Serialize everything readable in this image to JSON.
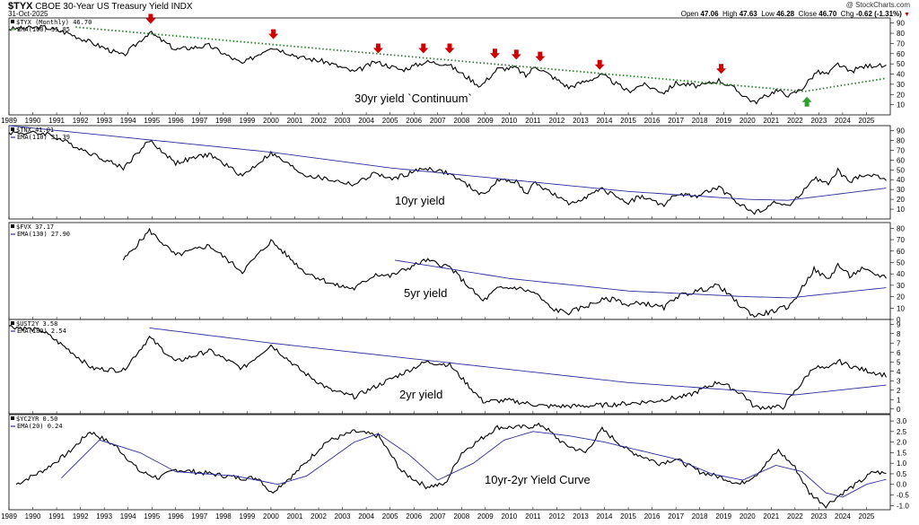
{
  "header": {
    "symbol": "$TYX",
    "name": "CBOE 30-Year US Treasury Yield INDX",
    "date": "31-Oct-2025",
    "source": "@ StockCharts.com",
    "open_label": "Open",
    "open": "47.06",
    "high_label": "High",
    "high": "47.63",
    "low_label": "Low",
    "low": "46.28",
    "close_label": "Close",
    "close": "46.70",
    "chg_label": "Chg",
    "chg": "-0.62 (-1.31%)"
  },
  "colors": {
    "price": "#000000",
    "ema": "#2e2e9a",
    "dotted": "#2e7d32",
    "down_arrow": "#d00000",
    "up_arrow": "#2ea02e"
  },
  "x_years": [
    1989,
    1990,
    1991,
    1992,
    1993,
    1994,
    1995,
    1996,
    1997,
    1998,
    1999,
    2000,
    2001,
    2002,
    2003,
    2004,
    2005,
    2006,
    2007,
    2008,
    2009,
    2010,
    2011,
    2012,
    2013,
    2014,
    2015,
    2016,
    2017,
    2018,
    2019,
    2020,
    2021,
    2022,
    2023,
    2024,
    2025
  ],
  "chart_data": [
    {
      "type": "line",
      "symbol": "$TYX",
      "legend_price": "$TYX (Monthly) 46.70",
      "legend_ema": "EMA(100) 35.85",
      "annotation": "30yr yield `Continuum`",
      "ylim": [
        0,
        95
      ],
      "yticks": [
        10,
        20,
        30,
        40,
        50,
        60,
        70,
        80,
        90
      ],
      "key_points": [
        [
          1989.0,
          84
        ],
        [
          1990.5,
          86
        ],
        [
          1991.5,
          80
        ],
        [
          1993.8,
          58
        ],
        [
          1994.9,
          81
        ],
        [
          1996.0,
          64
        ],
        [
          1997.4,
          68
        ],
        [
          1998.8,
          50
        ],
        [
          2000.0,
          67
        ],
        [
          2001.3,
          56
        ],
        [
          2002.3,
          52
        ],
        [
          2003.5,
          42
        ],
        [
          2004.4,
          52
        ],
        [
          2005.5,
          44
        ],
        [
          2006.5,
          52
        ],
        [
          2007.4,
          50
        ],
        [
          2008.8,
          28
        ],
        [
          2009.5,
          45
        ],
        [
          2010.3,
          46
        ],
        [
          2010.7,
          38
        ],
        [
          2011.1,
          48
        ],
        [
          2012.5,
          27
        ],
        [
          2013.9,
          39
        ],
        [
          2015.0,
          23
        ],
        [
          2015.6,
          30
        ],
        [
          2016.5,
          22
        ],
        [
          2017.0,
          31
        ],
        [
          2018.0,
          28
        ],
        [
          2018.8,
          34
        ],
        [
          2019.3,
          28
        ],
        [
          2020.3,
          12
        ],
        [
          2021.2,
          24
        ],
        [
          2021.8,
          19
        ],
        [
          2022.3,
          26
        ],
        [
          2022.9,
          42
        ],
        [
          2023.4,
          40
        ],
        [
          2023.8,
          50
        ],
        [
          2024.3,
          42
        ],
        [
          2024.8,
          47
        ],
        [
          2025.4,
          49
        ],
        [
          2025.83,
          46.7
        ]
      ],
      "ema_points": [
        [
          1991.8,
          86
        ],
        [
          2022.4,
          23
        ],
        [
          2025.83,
          35.85
        ]
      ],
      "down_arrows": [
        [
          1994.95,
          91
        ],
        [
          2000.1,
          76
        ],
        [
          2004.5,
          62
        ],
        [
          2006.4,
          62
        ],
        [
          2007.5,
          62
        ],
        [
          2009.4,
          57
        ],
        [
          2010.3,
          56
        ],
        [
          2011.3,
          54
        ],
        [
          2013.8,
          46
        ],
        [
          2018.9,
          42
        ]
      ],
      "up_arrows": [
        [
          2022.5,
          16
        ]
      ]
    },
    {
      "type": "line",
      "symbol": "$TNX",
      "legend_price": "$TNX 41.01",
      "legend_ema": "EMA(110) 31.39",
      "annotation": "10yr yield",
      "ylim": [
        0,
        95
      ],
      "yticks": [
        10,
        20,
        30,
        40,
        50,
        60,
        70,
        80,
        90
      ],
      "key_points": [
        [
          1989.0,
          88
        ],
        [
          1990.6,
          87
        ],
        [
          1993.8,
          52
        ],
        [
          1994.9,
          80
        ],
        [
          1996.0,
          57
        ],
        [
          1997.4,
          66
        ],
        [
          1998.8,
          44
        ],
        [
          2000.0,
          67
        ],
        [
          2001.4,
          45
        ],
        [
          2003.5,
          35
        ],
        [
          2004.4,
          47
        ],
        [
          2005.0,
          40
        ],
        [
          2006.5,
          52
        ],
        [
          2007.5,
          46
        ],
        [
          2008.9,
          24
        ],
        [
          2009.5,
          39
        ],
        [
          2010.3,
          39
        ],
        [
          2010.7,
          25
        ],
        [
          2011.1,
          37
        ],
        [
          2012.5,
          15
        ],
        [
          2013.9,
          30
        ],
        [
          2015.0,
          17
        ],
        [
          2015.5,
          23
        ],
        [
          2016.5,
          14
        ],
        [
          2017.0,
          25
        ],
        [
          2017.8,
          23
        ],
        [
          2018.8,
          32
        ],
        [
          2019.7,
          15
        ],
        [
          2020.3,
          6
        ],
        [
          2021.2,
          17
        ],
        [
          2021.8,
          13
        ],
        [
          2022.8,
          42
        ],
        [
          2023.4,
          35
        ],
        [
          2023.8,
          49
        ],
        [
          2024.3,
          37
        ],
        [
          2024.8,
          45
        ],
        [
          2025.3,
          44
        ],
        [
          2025.83,
          41.01
        ]
      ],
      "ema_points": [
        [
          1989.0,
          95
        ],
        [
          2000.0,
          68
        ],
        [
          2005.0,
          52
        ],
        [
          2010.0,
          40
        ],
        [
          2015.0,
          28
        ],
        [
          2020.0,
          20
        ],
        [
          2021.7,
          19
        ],
        [
          2025.83,
          31.39
        ]
      ]
    },
    {
      "type": "line",
      "symbol": "$FVX",
      "legend_price": "$FVX 37.17",
      "legend_ema": "EMA(130) 27.90",
      "annotation": "5yr yield",
      "ylim": [
        0,
        85
      ],
      "yticks": [
        0,
        10,
        20,
        30,
        40,
        50,
        60,
        70,
        80
      ],
      "key_points": [
        [
          1993.8,
          52
        ],
        [
          1994.9,
          78
        ],
        [
          1996.0,
          56
        ],
        [
          1997.4,
          65
        ],
        [
          1998.8,
          42
        ],
        [
          2000.0,
          69
        ],
        [
          2001.4,
          42
        ],
        [
          2002.7,
          30
        ],
        [
          2003.5,
          27
        ],
        [
          2004.4,
          40
        ],
        [
          2005.0,
          38
        ],
        [
          2006.5,
          52
        ],
        [
          2007.5,
          46
        ],
        [
          2008.9,
          16
        ],
        [
          2009.5,
          27
        ],
        [
          2010.3,
          28
        ],
        [
          2011.1,
          23
        ],
        [
          2011.8,
          9
        ],
        [
          2012.5,
          6
        ],
        [
          2013.9,
          17
        ],
        [
          2014.5,
          18
        ],
        [
          2015.0,
          12
        ],
        [
          2015.5,
          15
        ],
        [
          2016.5,
          10
        ],
        [
          2017.0,
          20
        ],
        [
          2018.8,
          30
        ],
        [
          2019.7,
          12
        ],
        [
          2020.3,
          3
        ],
        [
          2021.2,
          8
        ],
        [
          2021.8,
          12
        ],
        [
          2022.8,
          44
        ],
        [
          2023.4,
          35
        ],
        [
          2023.8,
          48
        ],
        [
          2024.3,
          38
        ],
        [
          2024.8,
          44
        ],
        [
          2025.3,
          40
        ],
        [
          2025.83,
          37.17
        ]
      ],
      "ema_points": [
        [
          2005.2,
          52
        ],
        [
          2010.0,
          36
        ],
        [
          2015.0,
          25
        ],
        [
          2020.0,
          20
        ],
        [
          2021.8,
          19
        ],
        [
          2025.83,
          27.9
        ]
      ]
    },
    {
      "type": "line",
      "symbol": "$UST2Y",
      "legend_price": "$UST2Y 3.58",
      "legend_ema": "EMA(180) 2.54",
      "annotation": "2yr yield",
      "ylim": [
        -0.5,
        9.5
      ],
      "yticks": [
        0,
        1,
        2,
        3,
        4,
        5,
        6,
        7,
        8,
        9
      ],
      "key_points": [
        [
          1989.0,
          8.8
        ],
        [
          1990.4,
          8.3
        ],
        [
          1991.5,
          6.3
        ],
        [
          1992.5,
          4.3
        ],
        [
          1993.8,
          4.1
        ],
        [
          1994.9,
          7.6
        ],
        [
          1996.0,
          5.0
        ],
        [
          1997.4,
          6.2
        ],
        [
          1998.8,
          4.3
        ],
        [
          2000.0,
          6.8
        ],
        [
          2001.3,
          4.0
        ],
        [
          2002.5,
          2.0
        ],
        [
          2003.5,
          1.3
        ],
        [
          2004.4,
          2.4
        ],
        [
          2006.5,
          5.0
        ],
        [
          2007.5,
          4.7
        ],
        [
          2008.9,
          0.8
        ],
        [
          2010.0,
          0.9
        ],
        [
          2011.5,
          0.3
        ],
        [
          2013.0,
          0.3
        ],
        [
          2014.5,
          0.5
        ],
        [
          2016.0,
          0.8
        ],
        [
          2017.5,
          1.4
        ],
        [
          2018.8,
          2.9
        ],
        [
          2019.8,
          1.6
        ],
        [
          2020.3,
          0.2
        ],
        [
          2021.5,
          0.2
        ],
        [
          2022.8,
          4.5
        ],
        [
          2023.4,
          4.2
        ],
        [
          2023.8,
          5.1
        ],
        [
          2024.3,
          4.6
        ],
        [
          2024.8,
          4.2
        ],
        [
          2025.3,
          3.9
        ],
        [
          2025.83,
          3.58
        ]
      ],
      "ema_points": [
        [
          1994.9,
          8.6
        ],
        [
          2000.0,
          7.0
        ],
        [
          2005.0,
          5.6
        ],
        [
          2010.0,
          4.2
        ],
        [
          2015.0,
          2.8
        ],
        [
          2020.0,
          1.9
        ],
        [
          2022.0,
          1.5
        ],
        [
          2025.83,
          2.54
        ]
      ]
    },
    {
      "type": "line",
      "symbol": "$YC2YR",
      "legend_price": "$YC2YR 0.50",
      "legend_ema": "EMA(20) 0.24",
      "annotation": "10yr-2yr Yield Curve",
      "ylim": [
        -1.2,
        3.3
      ],
      "yticks": [
        -1.0,
        -0.5,
        0.0,
        0.5,
        1.0,
        1.5,
        2.0,
        2.5,
        3.0
      ],
      "key_points": [
        [
          1989.3,
          0.0
        ],
        [
          1990.5,
          0.7
        ],
        [
          1991.5,
          1.5
        ],
        [
          1992.4,
          2.5
        ],
        [
          1993.5,
          1.8
        ],
        [
          1994.5,
          0.6
        ],
        [
          1995.3,
          0.3
        ],
        [
          1996.0,
          0.7
        ],
        [
          1997.5,
          0.5
        ],
        [
          1998.7,
          0.3
        ],
        [
          1999.5,
          0.3
        ],
        [
          2000.0,
          -0.4
        ],
        [
          2001.0,
          0.5
        ],
        [
          2002.3,
          2.0
        ],
        [
          2003.5,
          2.5
        ],
        [
          2004.5,
          2.3
        ],
        [
          2005.5,
          0.6
        ],
        [
          2006.5,
          -0.1
        ],
        [
          2007.3,
          0.0
        ],
        [
          2008.0,
          1.5
        ],
        [
          2009.5,
          2.7
        ],
        [
          2010.5,
          2.7
        ],
        [
          2011.4,
          2.8
        ],
        [
          2012.3,
          1.9
        ],
        [
          2013.2,
          1.5
        ],
        [
          2013.9,
          2.6
        ],
        [
          2015.0,
          1.6
        ],
        [
          2016.3,
          1.0
        ],
        [
          2017.0,
          1.2
        ],
        [
          2018.0,
          0.6
        ],
        [
          2019.0,
          0.3
        ],
        [
          2019.7,
          0.0
        ],
        [
          2020.4,
          0.5
        ],
        [
          2021.3,
          1.6
        ],
        [
          2022.0,
          0.8
        ],
        [
          2022.6,
          -0.4
        ],
        [
          2023.3,
          -1.0
        ],
        [
          2024.0,
          -0.4
        ],
        [
          2024.7,
          0.1
        ],
        [
          2025.3,
          0.6
        ],
        [
          2025.83,
          0.5
        ]
      ],
      "ema_points": [
        [
          1991.2,
          0.3
        ],
        [
          1992.8,
          2.1
        ],
        [
          1994.5,
          1.5
        ],
        [
          1996.0,
          0.6
        ],
        [
          1998.5,
          0.4
        ],
        [
          2000.3,
          0.0
        ],
        [
          2001.5,
          0.4
        ],
        [
          2003.5,
          2.0
        ],
        [
          2004.5,
          2.4
        ],
        [
          2005.8,
          1.4
        ],
        [
          2007.0,
          0.2
        ],
        [
          2008.5,
          1.0
        ],
        [
          2009.8,
          2.1
        ],
        [
          2011.0,
          2.5
        ],
        [
          2012.5,
          2.3
        ],
        [
          2014.0,
          2.0
        ],
        [
          2015.5,
          1.6
        ],
        [
          2017.0,
          1.2
        ],
        [
          2018.5,
          0.5
        ],
        [
          2019.8,
          0.2
        ],
        [
          2021.2,
          0.9
        ],
        [
          2022.3,
          0.6
        ],
        [
          2023.3,
          -0.4
        ],
        [
          2024.0,
          -0.6
        ],
        [
          2025.0,
          0.0
        ],
        [
          2025.83,
          0.24
        ]
      ]
    }
  ]
}
